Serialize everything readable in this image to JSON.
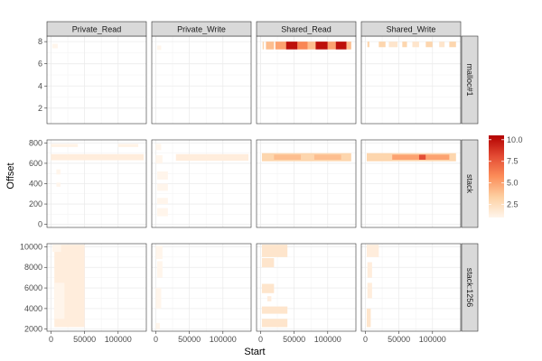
{
  "chart_data": {
    "type": "heatmap",
    "xlabel": "Start",
    "ylabel": "Offset",
    "columns": [
      "Private_Read",
      "Private_Write",
      "Shared_Read",
      "Shared_Write"
    ],
    "rows": [
      "malloc#1",
      "stack",
      "stack:1256"
    ],
    "x_ticks": [
      0,
      50000,
      100000
    ],
    "x_tick_labels": [
      "0",
      "50000",
      "100000"
    ],
    "xlim": [
      -6000,
      142000
    ],
    "y_axes": [
      {
        "row": "malloc#1",
        "ylim": [
          0.6,
          8.5
        ],
        "ticks": [
          2,
          4,
          6,
          8
        ],
        "tick_labels": [
          "2",
          "4",
          "6",
          "8"
        ]
      },
      {
        "row": "stack",
        "ylim": [
          -30,
          830
        ],
        "ticks": [
          0,
          200,
          400,
          600,
          800
        ],
        "tick_labels": [
          "0",
          "200",
          "400",
          "600",
          "800"
        ]
      },
      {
        "row": "stack:1256",
        "ylim": [
          1800,
          10300
        ],
        "ticks": [
          2000,
          4000,
          6000,
          8000,
          10000
        ],
        "tick_labels": [
          "2000",
          "4000",
          "6000",
          "8000",
          "10000"
        ]
      }
    ],
    "legend": {
      "position": "right",
      "min": 1,
      "max": 10.5,
      "ticks": [
        2.5,
        5.0,
        7.5,
        10.0
      ],
      "tick_labels": [
        "2.5",
        "5.0",
        "7.5",
        "10.0"
      ],
      "colors": [
        "#fff5eb",
        "#fdd0a2",
        "#fc8d59",
        "#e34a33",
        "#b30000"
      ]
    },
    "grid": true,
    "panels": [
      {
        "col": 0,
        "row": 0,
        "cells": [
          [
            2000,
            7.4,
            10000,
            7.8,
            1
          ]
        ]
      },
      {
        "col": 1,
        "row": 0,
        "cells": [
          [
            2000,
            7.25,
            8000,
            7.65,
            1
          ]
        ]
      },
      {
        "col": 2,
        "row": 0,
        "cells": [
          [
            3000,
            7.3,
            5000,
            8.0,
            3
          ],
          [
            8000,
            7.3,
            20000,
            8.0,
            4
          ],
          [
            22000,
            7.3,
            38000,
            8.0,
            5
          ],
          [
            38000,
            7.3,
            55000,
            8.0,
            10
          ],
          [
            55000,
            7.3,
            70000,
            8.0,
            6
          ],
          [
            70000,
            7.3,
            82000,
            8.0,
            4
          ],
          [
            82000,
            7.3,
            100000,
            8.0,
            10
          ],
          [
            100000,
            7.3,
            112000,
            8.0,
            5
          ],
          [
            112000,
            7.3,
            128000,
            8.0,
            10
          ],
          [
            128000,
            7.3,
            135000,
            8.0,
            4
          ]
        ]
      },
      {
        "col": 3,
        "row": 0,
        "cells": [
          [
            3000,
            7.5,
            6000,
            8.0,
            3
          ],
          [
            20000,
            7.5,
            30000,
            8.0,
            3
          ],
          [
            35000,
            7.5,
            48000,
            8.0,
            2
          ],
          [
            55000,
            7.5,
            62000,
            8.0,
            3
          ],
          [
            70000,
            7.5,
            80000,
            8.0,
            2
          ],
          [
            90000,
            7.5,
            100000,
            8.0,
            3
          ],
          [
            110000,
            7.5,
            118000,
            8.0,
            2
          ],
          [
            125000,
            7.5,
            135000,
            8.0,
            3
          ]
        ]
      },
      {
        "col": 0,
        "row": 1,
        "cells": [
          [
            0,
            630,
            138000,
            690,
            1.5
          ],
          [
            0,
            760,
            40000,
            790,
            1.2
          ],
          [
            100000,
            760,
            130000,
            790,
            1.2
          ],
          [
            8000,
            490,
            14000,
            540,
            1
          ],
          [
            8000,
            370,
            14000,
            410,
            1
          ]
        ]
      },
      {
        "col": 1,
        "row": 1,
        "cells": [
          [
            0,
            730,
            8000,
            790,
            1
          ],
          [
            0,
            600,
            10000,
            680,
            1
          ],
          [
            2000,
            440,
            18000,
            520,
            1
          ],
          [
            2000,
            330,
            18000,
            400,
            1
          ],
          [
            2000,
            200,
            18000,
            260,
            1
          ],
          [
            2000,
            80,
            18000,
            160,
            1
          ],
          [
            30000,
            625,
            138000,
            690,
            1.5
          ]
        ]
      },
      {
        "col": 2,
        "row": 1,
        "cells": [
          [
            2000,
            620,
            135000,
            700,
            3
          ],
          [
            20000,
            635,
            60000,
            685,
            4
          ],
          [
            80000,
            635,
            120000,
            685,
            4
          ]
        ]
      },
      {
        "col": 3,
        "row": 1,
        "cells": [
          [
            2000,
            620,
            135000,
            700,
            3
          ],
          [
            40000,
            635,
            80000,
            685,
            5
          ],
          [
            80000,
            635,
            90000,
            685,
            8
          ],
          [
            90000,
            635,
            125000,
            685,
            5
          ]
        ]
      },
      {
        "col": 0,
        "row": 2,
        "cells": [
          [
            5000,
            2200,
            50000,
            10200,
            1.5
          ],
          [
            5000,
            3000,
            20000,
            6500,
            1
          ],
          [
            2000,
            9500,
            15000,
            10200,
            1
          ]
        ]
      },
      {
        "col": 1,
        "row": 2,
        "cells": [
          [
            0,
            8800,
            10000,
            10100,
            1
          ],
          [
            2000,
            7000,
            10000,
            8600,
            1
          ],
          [
            0,
            4000,
            8000,
            6000,
            1
          ],
          [
            0,
            2000,
            6000,
            2600,
            1
          ]
        ]
      },
      {
        "col": 2,
        "row": 2,
        "cells": [
          [
            2000,
            9000,
            40000,
            10200,
            2
          ],
          [
            2000,
            8000,
            20000,
            8900,
            2
          ],
          [
            2000,
            5500,
            20000,
            6400,
            2
          ],
          [
            2000,
            3500,
            40000,
            4200,
            2
          ],
          [
            2000,
            2200,
            40000,
            3000,
            2
          ],
          [
            10000,
            4700,
            16000,
            5200,
            1.5
          ]
        ]
      },
      {
        "col": 3,
        "row": 2,
        "cells": [
          [
            2000,
            9000,
            20000,
            10200,
            1.5
          ],
          [
            3000,
            7000,
            10000,
            8500,
            1.5
          ],
          [
            3000,
            5000,
            10000,
            6500,
            1.5
          ],
          [
            2000,
            2200,
            8000,
            4000,
            2
          ]
        ]
      }
    ]
  }
}
